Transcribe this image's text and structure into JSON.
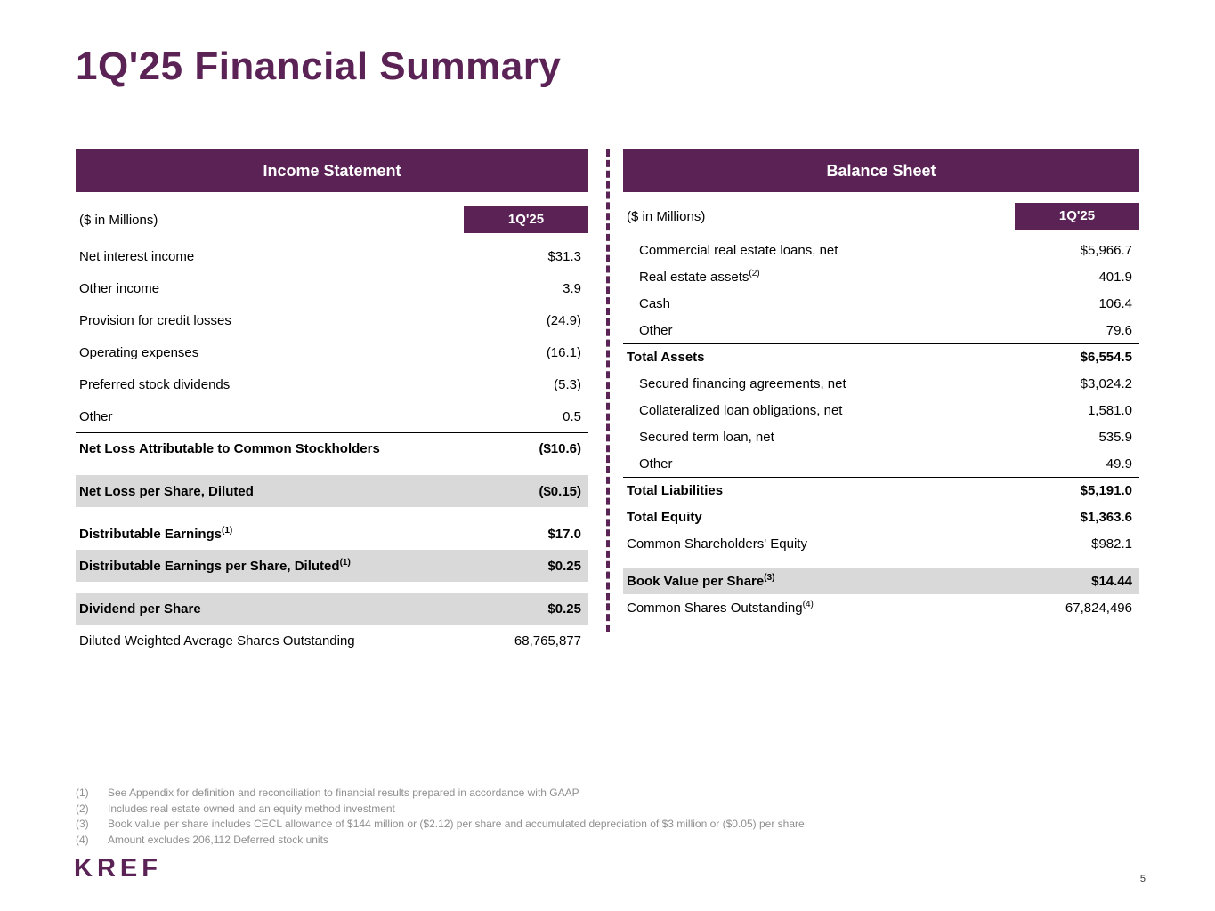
{
  "slide": {
    "title": "1Q'25 Financial Summary",
    "logo": "KREF",
    "page_number": "5"
  },
  "colors": {
    "brand_purple": "#5b2256",
    "row_shade": "#d9d9d9",
    "footnote_gray": "#8f8f8f"
  },
  "income_statement": {
    "title": "Income Statement",
    "unit_label": "($ in Millions)",
    "period_label": "1Q'25",
    "rows": [
      {
        "label": "Net interest income",
        "value": "$31.3"
      },
      {
        "label": "Other income",
        "value": "3.9"
      },
      {
        "label": "Provision for credit losses",
        "value": "(24.9)"
      },
      {
        "label": "Operating expenses",
        "value": "(16.1)"
      },
      {
        "label": "Preferred stock dividends",
        "value": "(5.3)"
      },
      {
        "label": "Other",
        "value": "0.5"
      },
      {
        "label": "Net Loss Attributable to Common Stockholders",
        "value": "($10.6)",
        "bold": true,
        "top_border": true
      },
      {
        "label": "Net Loss per Share, Diluted",
        "value": "($0.15)",
        "bold": true,
        "shaded": true,
        "gap_before": true
      },
      {
        "label": "Distributable Earnings",
        "sup": "(1)",
        "value": "$17.0",
        "bold": true,
        "gap_before": true
      },
      {
        "label": "Distributable Earnings per Share, Diluted",
        "sup": "(1)",
        "value": "$0.25",
        "bold": true,
        "shaded": true
      },
      {
        "label": "Dividend per Share",
        "value": "$0.25",
        "bold": true,
        "shaded": true,
        "gap_before": true
      },
      {
        "label": "Diluted Weighted Average Shares Outstanding",
        "value": "68,765,877"
      }
    ]
  },
  "balance_sheet": {
    "title": "Balance Sheet",
    "unit_label": "($ in Millions)",
    "period_label": "1Q'25",
    "rows": [
      {
        "label": "Commercial real estate loans, net",
        "value": "$5,966.7",
        "indent": true
      },
      {
        "label": "Real estate assets",
        "sup": "(2)",
        "value": "401.9",
        "indent": true
      },
      {
        "label": "Cash",
        "value": "106.4",
        "indent": true
      },
      {
        "label": "Other",
        "value": "79.6",
        "indent": true
      },
      {
        "label": "Total Assets",
        "value": "$6,554.5",
        "bold": true,
        "top_border": true
      },
      {
        "label": "Secured financing agreements, net",
        "value": "$3,024.2",
        "indent": true
      },
      {
        "label": "Collateralized loan obligations, net",
        "value": "1,581.0",
        "indent": true
      },
      {
        "label": "Secured term loan, net",
        "value": "535.9",
        "indent": true
      },
      {
        "label": "Other",
        "value": "49.9",
        "indent": true
      },
      {
        "label": "Total Liabilities",
        "value": "$5,191.0",
        "bold": true,
        "top_border": true
      },
      {
        "label": "Total Equity",
        "value": "$1,363.6",
        "bold": true,
        "top_border": true
      },
      {
        "label": "Common Shareholders' Equity",
        "value": "$982.1"
      },
      {
        "label": "Book Value per Share",
        "sup": "(3)",
        "value": "$14.44",
        "bold": true,
        "shaded": true,
        "gap_before": true
      },
      {
        "label": "Common Shares Outstanding",
        "sup": "(4)",
        "value": "67,824,496"
      }
    ]
  },
  "footnotes": [
    {
      "num": "(1)",
      "text": "See Appendix for definition and reconciliation to financial results prepared in accordance with GAAP"
    },
    {
      "num": "(2)",
      "text": "Includes real estate owned and an equity method investment"
    },
    {
      "num": "(3)",
      "text": "Book value per share includes CECL allowance of $144 million or ($2.12) per share and accumulated depreciation of $3 million or ($0.05) per share"
    },
    {
      "num": "(4)",
      "text": "Amount excludes 206,112 Deferred stock units"
    }
  ]
}
